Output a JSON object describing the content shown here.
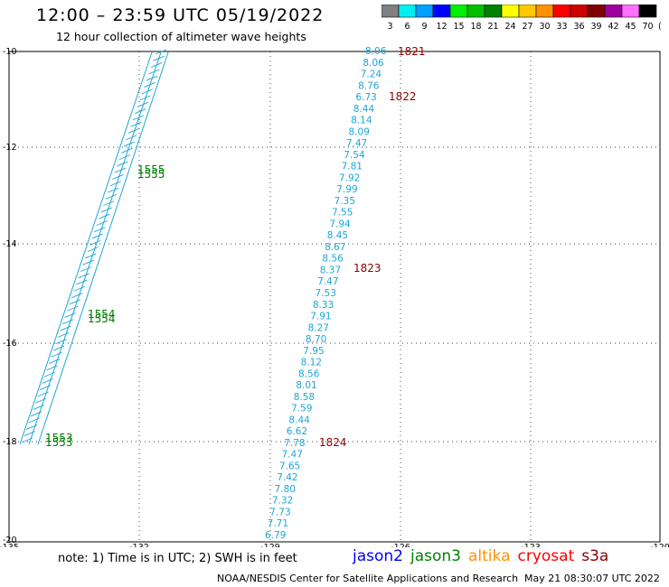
{
  "header": {
    "title": "12:00 – 23:59 UTC 05/19/2022",
    "subtitle": "12 hour collection of altimeter wave heights"
  },
  "colorbar": {
    "bins": [
      {
        "label": "3",
        "color": "#808080"
      },
      {
        "label": "6",
        "color": "#00f0f0"
      },
      {
        "label": "9",
        "color": "#00a0ff"
      },
      {
        "label": "12",
        "color": "#0000ff"
      },
      {
        "label": "15",
        "color": "#00f000"
      },
      {
        "label": "18",
        "color": "#00c000"
      },
      {
        "label": "21",
        "color": "#008000"
      },
      {
        "label": "24",
        "color": "#ffff00"
      },
      {
        "label": "27",
        "color": "#ffc800"
      },
      {
        "label": "30",
        "color": "#ff9000"
      },
      {
        "label": "33",
        "color": "#ff0000"
      },
      {
        "label": "36",
        "color": "#d00000"
      },
      {
        "label": "39",
        "color": "#800000"
      },
      {
        "label": "42",
        "color": "#a000a0"
      },
      {
        "label": "45",
        "color": "#ff70ff"
      },
      {
        "label": "70",
        "color": "#000000"
      }
    ],
    "unit": "(ft)"
  },
  "map": {
    "lat_labels": [
      "-10",
      "-12",
      "-14",
      "-16",
      "-18",
      "-20"
    ],
    "lon_labels": [
      "-135",
      "-132",
      "-129",
      "-126",
      "-123",
      "-120"
    ],
    "wave_color": "#1ca6d6",
    "time_color_red": "#8b0000",
    "time_color_green": "#007a00",
    "track_center": {
      "values": [
        "8.06",
        "8.06",
        "7.24",
        "8.76",
        "6.73",
        "8.44",
        "8.14",
        "8.09",
        "7.47",
        "7.54",
        "7.81",
        "7.92",
        "7.99",
        "7.35",
        "7.55",
        "7.94",
        "8.45",
        "8.67",
        "8.56",
        "8.37",
        "7.47",
        "7.53",
        "8.33",
        "7.91",
        "8.27",
        "8.70",
        "7.95",
        "8.12",
        "8.56",
        "8.01",
        "8.58",
        "7.59",
        "8.44",
        "6.62",
        "7.78",
        "7.47",
        "7.65",
        "7.42",
        "7.80",
        "7.32",
        "7.73",
        "7.71",
        "6.79"
      ],
      "times": [
        "1821",
        "1822",
        "1823",
        "1824"
      ]
    },
    "track_left": {
      "times": [
        "1555",
        "1554",
        "1553"
      ]
    }
  },
  "footer": {
    "note": "note:  1) Time is in UTC;  2) SWH is in feet",
    "legend": [
      {
        "label": "jason2",
        "color": "#0000ff"
      },
      {
        "label": "jason3",
        "color": "#008000"
      },
      {
        "label": "altika",
        "color": "#ff9000"
      },
      {
        "label": "cryosat",
        "color": "#ff0000"
      },
      {
        "label": "s3a",
        "color": "#8b0000"
      }
    ],
    "credit": "NOAA/NESDIS Center for Satellite Applications and Research",
    "timestamp": "May 21 08:30:07 UTC 2022"
  }
}
